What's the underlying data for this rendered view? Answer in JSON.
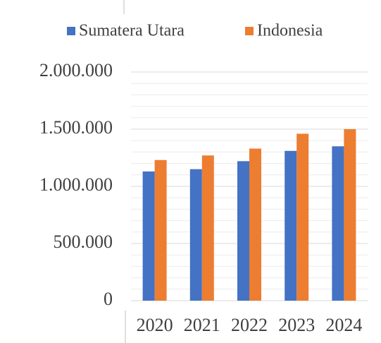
{
  "chart_data": {
    "type": "bar",
    "categories": [
      "2020",
      "2021",
      "2022",
      "2023",
      "2024"
    ],
    "series": [
      {
        "name": "Sumatera Utara",
        "color": "#4472c4",
        "values": [
          1130000,
          1150000,
          1220000,
          1310000,
          1350000
        ]
      },
      {
        "name": "Indonesia",
        "color": "#ed7d31",
        "values": [
          1230000,
          1270000,
          1330000,
          1460000,
          1500000
        ]
      }
    ],
    "ylim": [
      0,
      2000000
    ],
    "yticks": [
      0,
      {
        "value": 500000,
        "label": "500.000"
      },
      {
        "value": 1000000,
        "label": "1.000.000"
      },
      {
        "value": 1500000,
        "label": "1.500.000"
      },
      {
        "value": 2000000,
        "label": "2.000.000"
      }
    ],
    "grid": true,
    "minor_grid": true,
    "legend": "top"
  }
}
